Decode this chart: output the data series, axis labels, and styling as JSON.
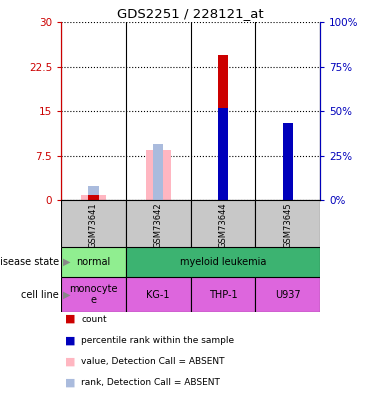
{
  "title": "GDS2251 / 228121_at",
  "samples": [
    "GSM73641",
    "GSM73642",
    "GSM73644",
    "GSM73645"
  ],
  "count_values": [
    1.0,
    0.0,
    24.5,
    11.0
  ],
  "percentile_values": [
    null,
    null,
    15.5,
    13.0
  ],
  "absent_value_values": [
    1.0,
    8.5,
    null,
    null
  ],
  "absent_rank_values": [
    2.5,
    9.5,
    null,
    null
  ],
  "left_ylim": [
    0,
    30
  ],
  "left_yticks": [
    0,
    7.5,
    15,
    22.5,
    30
  ],
  "left_yticklabels": [
    "0",
    "7.5",
    "15",
    "22.5",
    "30"
  ],
  "right_yticks": [
    0,
    7.5,
    15,
    22.5,
    30
  ],
  "right_yticklabels": [
    "0%",
    "25%",
    "50%",
    "75%",
    "100%"
  ],
  "disease_state": [
    {
      "label": "normal",
      "span": [
        0,
        1
      ],
      "color": "#90EE90"
    },
    {
      "label": "myeloid leukemia",
      "span": [
        1,
        4
      ],
      "color": "#3CB371"
    }
  ],
  "cell_line": [
    {
      "label": "monocyte\ne",
      "span": [
        0,
        1
      ],
      "color": "#DD66DD"
    },
    {
      "label": "KG-1",
      "span": [
        1,
        2
      ],
      "color": "#DD66DD"
    },
    {
      "label": "THP-1",
      "span": [
        2,
        3
      ],
      "color": "#DD66DD"
    },
    {
      "label": "U937",
      "span": [
        3,
        4
      ],
      "color": "#DD66DD"
    }
  ],
  "count_color": "#CC0000",
  "percentile_color": "#0000BB",
  "absent_value_color": "#FFB6C1",
  "absent_rank_color": "#AABBDD",
  "bar_width": 0.35,
  "label_disease_state": "disease state",
  "label_cell_line": "cell line",
  "legend_items": [
    {
      "color": "#CC0000",
      "label": "count"
    },
    {
      "color": "#0000BB",
      "label": "percentile rank within the sample"
    },
    {
      "color": "#FFB6C1",
      "label": "value, Detection Call = ABSENT"
    },
    {
      "color": "#AABBDD",
      "label": "rank, Detection Call = ABSENT"
    }
  ]
}
